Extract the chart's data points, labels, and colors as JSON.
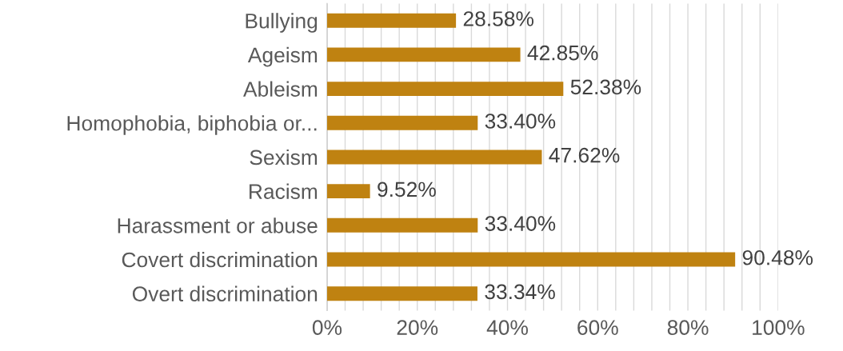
{
  "chart_data": {
    "type": "bar",
    "orientation": "horizontal",
    "categories": [
      "Bullying",
      "Ageism",
      "Ableism",
      "Homophobia, biphobia or...",
      "Sexism",
      "Racism",
      "Harassment or abuse",
      "Covert discrimination",
      "Overt discrimination"
    ],
    "values": [
      28.58,
      42.85,
      52.38,
      33.4,
      47.62,
      9.52,
      33.4,
      90.48,
      33.34
    ],
    "value_labels": [
      "28.58%",
      "42.85%",
      "52.38%",
      "33.40%",
      "47.62%",
      "9.52%",
      "33.40%",
      "90.48%",
      "33.34%"
    ],
    "color": "#bf8211",
    "xlim": [
      0,
      100
    ],
    "xticks": [
      {
        "value": 0,
        "label": "0%"
      },
      {
        "value": 4,
        "label": null
      },
      {
        "value": 8,
        "label": null
      },
      {
        "value": 12,
        "label": null
      },
      {
        "value": 16,
        "label": null
      },
      {
        "value": 20,
        "label": "20%"
      },
      {
        "value": 24,
        "label": null
      },
      {
        "value": 28,
        "label": null
      },
      {
        "value": 32,
        "label": null
      },
      {
        "value": 36,
        "label": null
      },
      {
        "value": 40,
        "label": "40%"
      },
      {
        "value": 44,
        "label": null
      },
      {
        "value": 48,
        "label": null
      },
      {
        "value": 52,
        "label": null
      },
      {
        "value": 56,
        "label": null
      },
      {
        "value": 60,
        "label": "60%"
      },
      {
        "value": 64,
        "label": null
      },
      {
        "value": 68,
        "label": null
      },
      {
        "value": 72,
        "label": null
      },
      {
        "value": 76,
        "label": null
      },
      {
        "value": 80,
        "label": "80%"
      },
      {
        "value": 84,
        "label": null
      },
      {
        "value": 88,
        "label": null
      },
      {
        "value": 92,
        "label": null
      },
      {
        "value": 96,
        "label": null
      },
      {
        "value": 100,
        "label": "100%"
      }
    ],
    "grid": "x",
    "legend": false
  }
}
